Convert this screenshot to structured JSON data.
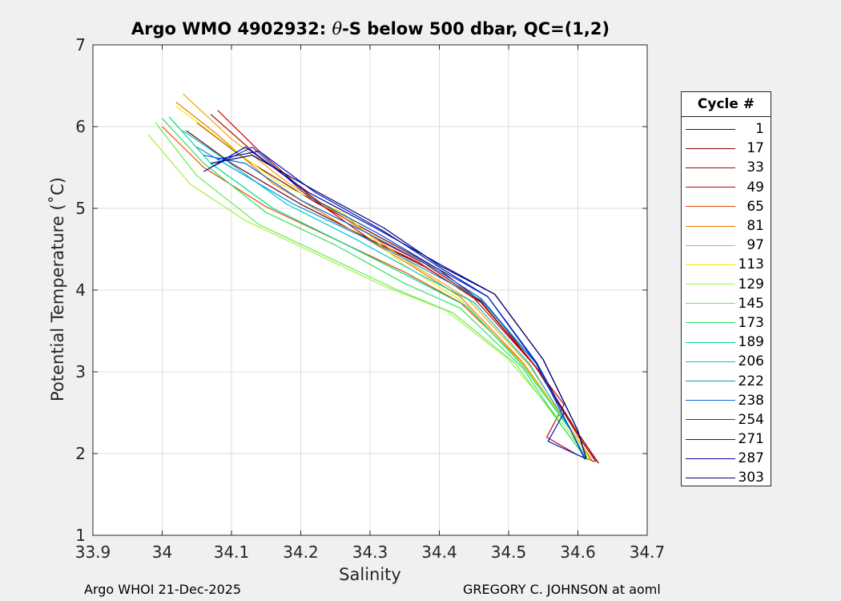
{
  "chart_data": {
    "type": "line",
    "title_main": "Argo WMO 4902932: ",
    "title_symbol": "θ",
    "title_rest": "-S below 500 dbar,  QC=(1,2)",
    "xlabel": "Salinity",
    "ylabel": "Potential Temperature (˚C)",
    "xlim": [
      33.9,
      34.7
    ],
    "ylim": [
      1,
      7
    ],
    "xticks": [
      "33.9",
      "34",
      "34.1",
      "34.2",
      "34.3",
      "34.4",
      "34.5",
      "34.6",
      "34.7"
    ],
    "yticks": [
      "1",
      "2",
      "3",
      "4",
      "5",
      "6",
      "7"
    ],
    "grid": true,
    "legend_title": "Cycle #",
    "legend_position": "outside-right",
    "series": [
      {
        "name": "1",
        "color": "#6b0000",
        "x": [
          34.035,
          34.1,
          34.2,
          34.3,
          34.38,
          34.46,
          34.54,
          34.6,
          34.63
        ],
        "y": [
          5.95,
          5.55,
          5.05,
          4.62,
          4.28,
          3.85,
          3.05,
          2.25,
          1.88
        ]
      },
      {
        "name": "17",
        "color": "#8a0000",
        "x": [
          34.05,
          34.12,
          34.22,
          34.32,
          34.4,
          34.47,
          34.545,
          34.6,
          34.628
        ],
        "y": [
          6.05,
          5.6,
          5.08,
          4.62,
          4.25,
          3.8,
          3.0,
          2.25,
          1.9
        ]
      },
      {
        "name": "33",
        "color": "#b00000",
        "x": [
          34.07,
          34.13,
          34.22,
          34.31,
          34.38,
          34.46,
          34.54,
          34.6,
          34.626
        ],
        "y": [
          6.15,
          5.7,
          5.12,
          4.62,
          4.32,
          3.86,
          3.05,
          2.22,
          1.9
        ]
      },
      {
        "name": "49",
        "color": "#d40000",
        "x": [
          34.08,
          34.14,
          34.22,
          34.3,
          34.37,
          34.45,
          34.535,
          34.58,
          34.555,
          34.6,
          34.624
        ],
        "y": [
          6.2,
          5.7,
          5.1,
          4.62,
          4.34,
          3.9,
          3.1,
          2.6,
          2.2,
          1.98,
          1.9
        ]
      },
      {
        "name": "65",
        "color": "#e84800",
        "x": [
          34.0,
          34.06,
          34.15,
          34.25,
          34.35,
          34.43,
          34.52,
          34.59,
          34.62
        ],
        "y": [
          6.0,
          5.5,
          5.02,
          4.62,
          4.22,
          3.85,
          3.12,
          2.3,
          1.92
        ]
      },
      {
        "name": "81",
        "color": "#f07800",
        "x": [
          34.02,
          34.08,
          34.16,
          34.26,
          34.35,
          34.43,
          34.52,
          34.59,
          34.619
        ],
        "y": [
          6.3,
          5.9,
          5.3,
          4.8,
          4.35,
          3.92,
          3.12,
          2.3,
          1.92
        ]
      },
      {
        "name": "97",
        "color": "#f0a800",
        "x": [
          34.03,
          34.1,
          34.18,
          34.27,
          34.36,
          34.44,
          34.53,
          34.59,
          34.618
        ],
        "y": [
          6.4,
          5.85,
          5.32,
          4.85,
          4.32,
          3.9,
          3.08,
          2.3,
          1.92
        ]
      },
      {
        "name": "113",
        "color": "#eeee00",
        "x": [
          34.02,
          34.09,
          34.17,
          34.26,
          34.35,
          34.43,
          34.52,
          34.59,
          34.618
        ],
        "y": [
          6.25,
          5.8,
          5.3,
          4.95,
          4.3,
          3.88,
          3.1,
          2.3,
          1.92
        ]
      },
      {
        "name": "129",
        "color": "#a8f040",
        "x": [
          33.98,
          34.04,
          34.12,
          34.22,
          34.32,
          34.41,
          34.5,
          34.58,
          34.615
        ],
        "y": [
          5.9,
          5.3,
          4.85,
          4.45,
          4.05,
          3.75,
          3.15,
          2.35,
          1.93
        ]
      },
      {
        "name": "145",
        "color": "#60ee50",
        "x": [
          33.99,
          34.05,
          34.14,
          34.24,
          34.34,
          34.42,
          34.51,
          34.58,
          34.614
        ],
        "y": [
          6.05,
          5.4,
          4.8,
          4.4,
          4.0,
          3.72,
          3.1,
          2.3,
          1.92
        ]
      },
      {
        "name": "173",
        "color": "#30e060",
        "x": [
          34.0,
          34.06,
          34.15,
          34.25,
          34.35,
          34.43,
          34.52,
          34.58,
          34.613
        ],
        "y": [
          6.1,
          5.55,
          4.95,
          4.55,
          4.08,
          3.78,
          3.05,
          2.3,
          1.93
        ]
      },
      {
        "name": "189",
        "color": "#00d890",
        "x": [
          34.01,
          34.07,
          34.16,
          34.26,
          34.36,
          34.44,
          34.52,
          34.59,
          34.612
        ],
        "y": [
          6.12,
          5.55,
          5.0,
          4.58,
          4.15,
          3.8,
          3.08,
          2.28,
          1.93
        ]
      },
      {
        "name": "206",
        "color": "#00c8d0",
        "x": [
          34.03,
          34.09,
          34.18,
          34.28,
          34.37,
          34.45,
          34.53,
          34.59,
          34.612
        ],
        "y": [
          5.95,
          5.6,
          5.05,
          4.62,
          4.2,
          3.85,
          3.1,
          2.28,
          1.93
        ]
      },
      {
        "name": "222",
        "color": "#0098d8",
        "x": [
          34.05,
          34.1,
          34.19,
          34.29,
          34.38,
          34.46,
          34.54,
          34.59,
          34.611
        ],
        "y": [
          5.75,
          5.5,
          5.05,
          4.65,
          4.25,
          3.88,
          3.1,
          2.28,
          1.93
        ]
      },
      {
        "name": "238",
        "color": "#0068d8",
        "x": [
          34.06,
          34.12,
          34.2,
          34.3,
          34.39,
          34.46,
          34.54,
          34.59,
          34.61
        ],
        "y": [
          5.65,
          5.55,
          5.1,
          4.68,
          4.28,
          3.9,
          3.1,
          2.28,
          1.93
        ]
      },
      {
        "name": "254",
        "color": "#0040d0",
        "x": [
          34.07,
          34.13,
          34.21,
          34.31,
          34.39,
          34.47,
          34.54,
          34.59,
          34.61
        ],
        "y": [
          5.5,
          5.75,
          5.15,
          4.7,
          4.3,
          3.92,
          3.1,
          2.28,
          1.93
        ]
      },
      {
        "name": "271",
        "color": "#0018c0",
        "x": [
          34.08,
          34.14,
          34.22,
          34.32,
          34.4,
          34.47,
          34.54,
          34.58,
          34.557,
          34.595,
          34.611
        ],
        "y": [
          5.6,
          5.7,
          5.2,
          4.72,
          4.28,
          3.92,
          3.12,
          2.5,
          2.15,
          2.0,
          1.94
        ]
      },
      {
        "name": "287",
        "color": "#0000a0",
        "x": [
          34.06,
          34.12,
          34.21,
          34.31,
          34.4,
          34.48,
          34.55,
          34.6,
          34.612
        ],
        "y": [
          5.45,
          5.75,
          5.2,
          4.75,
          4.32,
          3.95,
          3.15,
          2.28,
          1.94
        ]
      },
      {
        "name": "303",
        "color": "#00006e",
        "x": [
          34.07,
          34.13,
          34.22,
          34.32,
          34.4,
          34.48,
          34.55,
          34.6,
          34.612
        ],
        "y": [
          5.55,
          5.65,
          5.22,
          4.76,
          4.3,
          3.95,
          3.15,
          2.28,
          1.94
        ]
      }
    ]
  },
  "footer": {
    "left": "Argo WHOI 21-Dec-2025",
    "right": "GREGORY C. JOHNSON at aoml"
  }
}
